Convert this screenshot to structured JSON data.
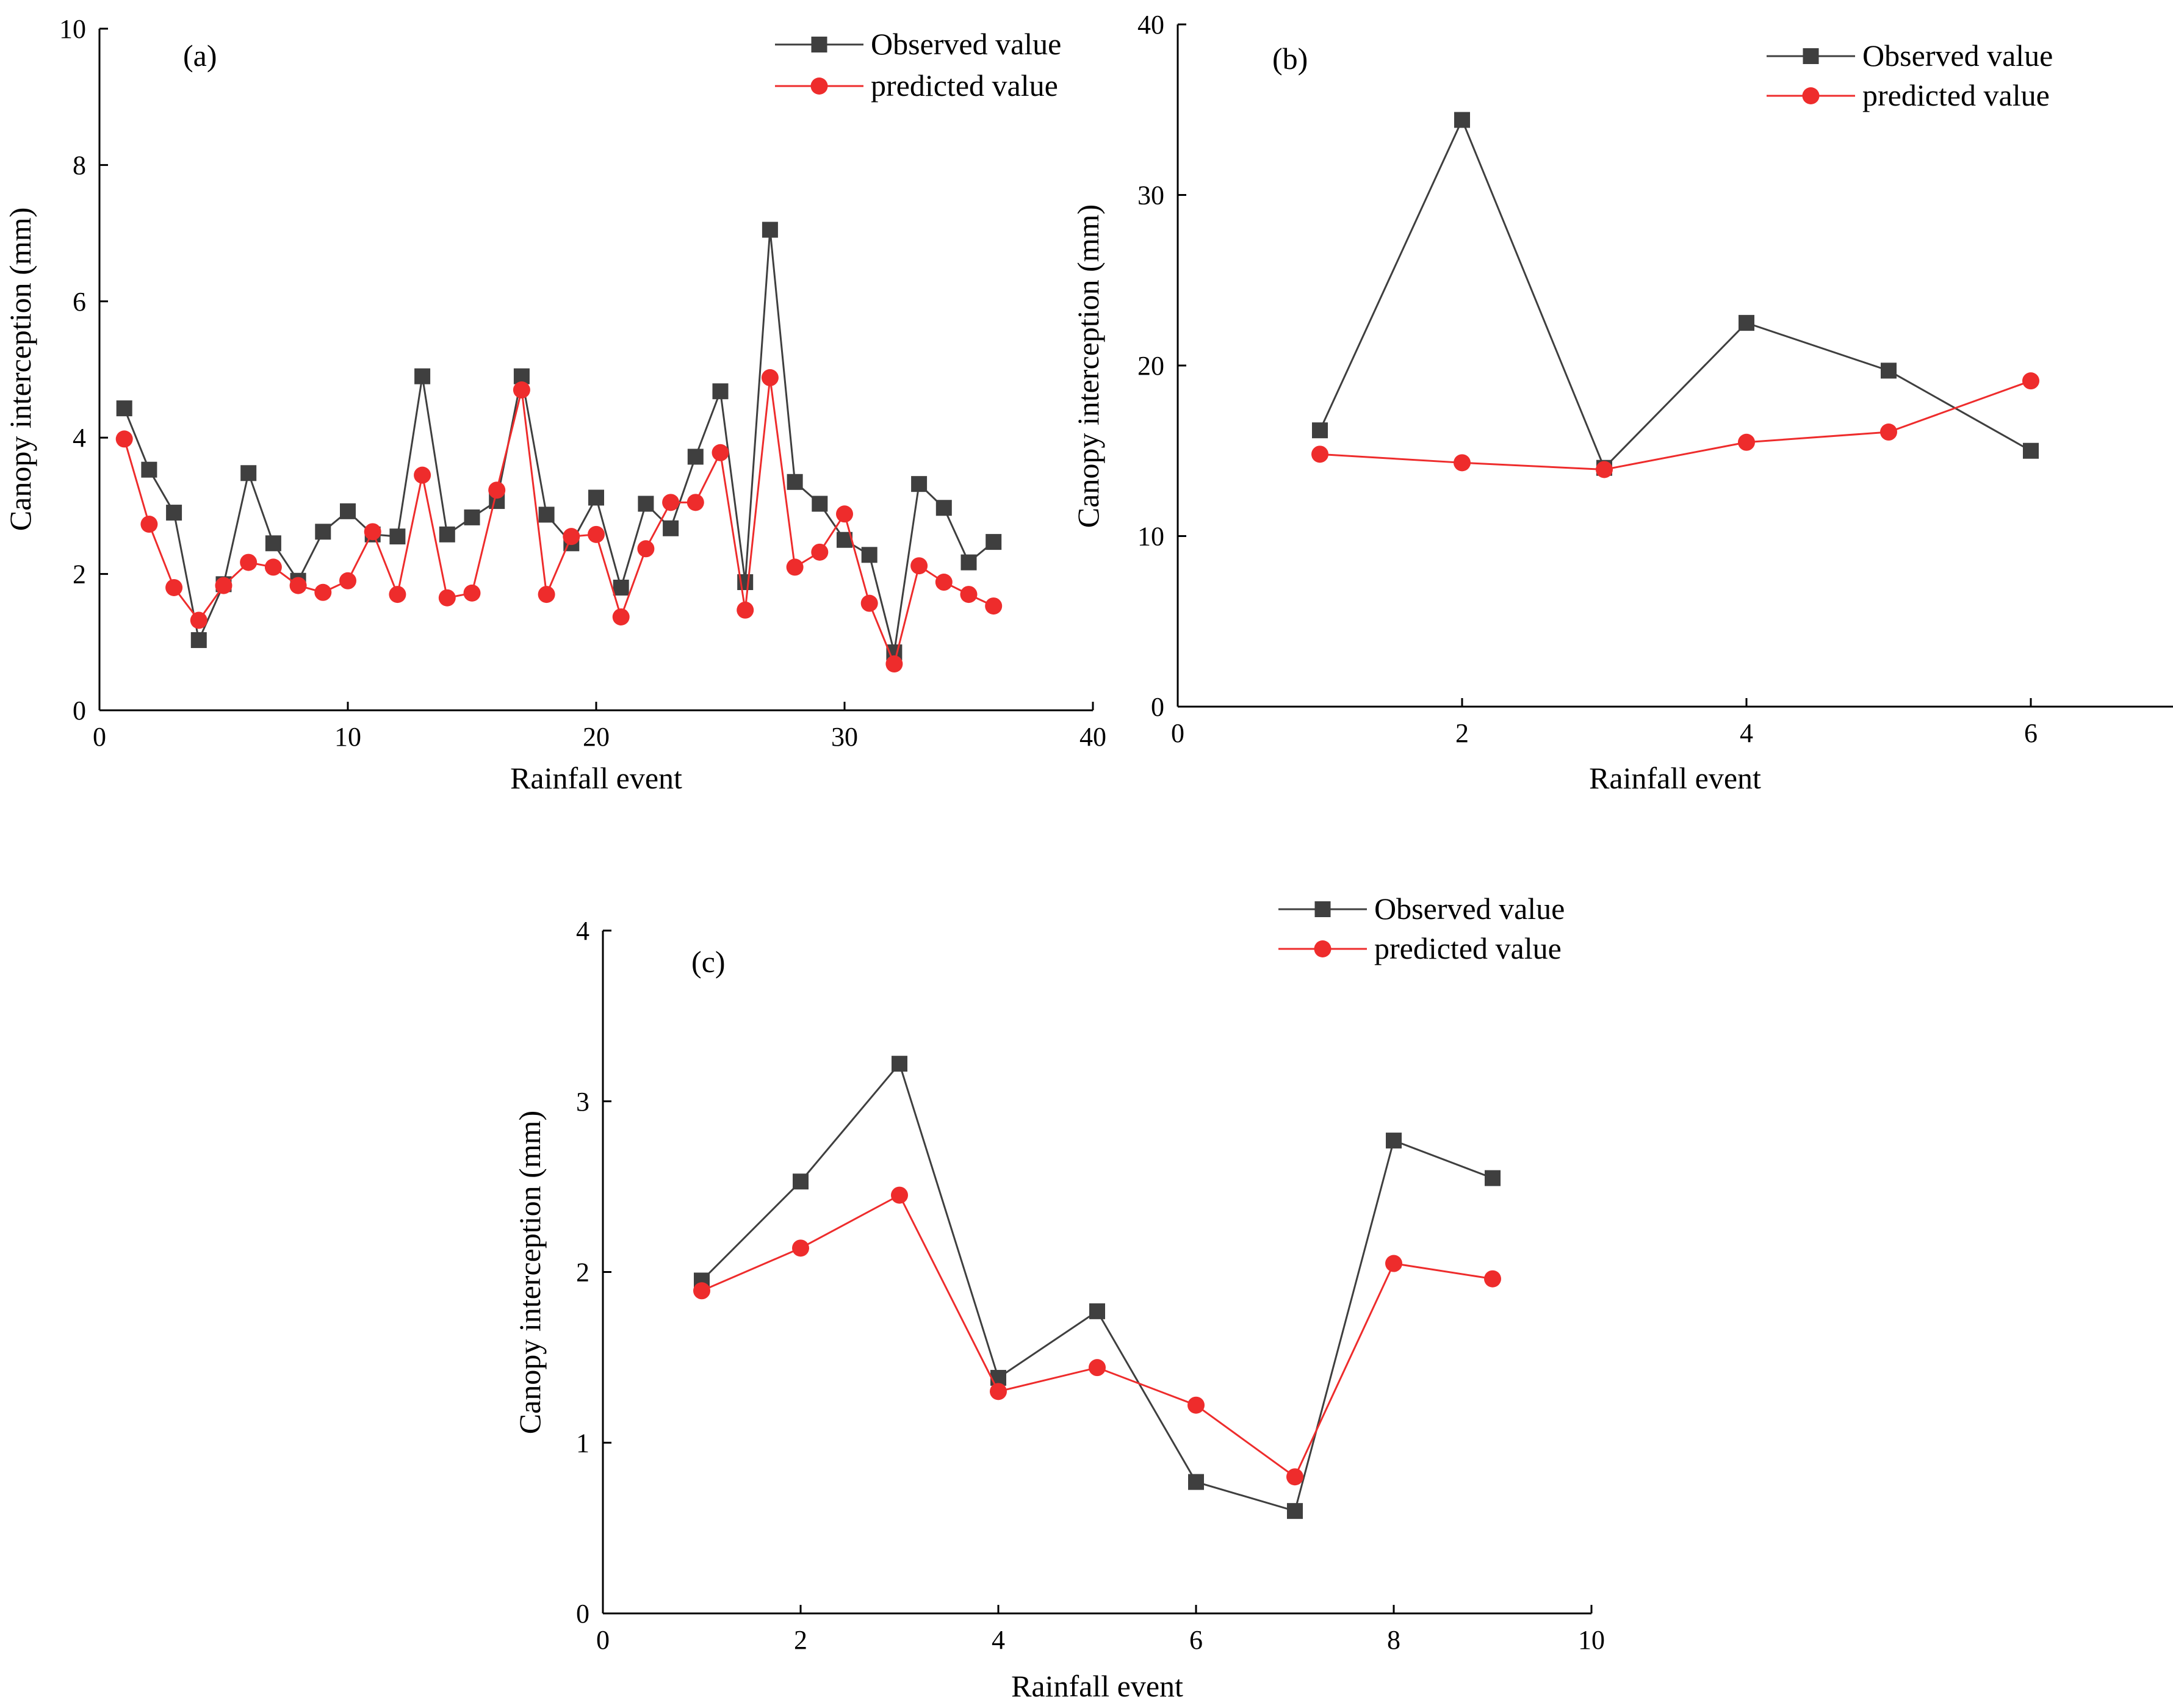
{
  "figure": {
    "background": "#ffffff"
  },
  "styles": {
    "observed_color": "#3f3f3f",
    "predicted_color": "#ee2c2c",
    "axis_color": "#000000"
  },
  "chart_data": [
    {
      "type": "line",
      "panel_label": "(a)",
      "title": "",
      "xlabel": "Rainfall event",
      "ylabel": "Canopy interception (mm)",
      "xlim": [
        0,
        40
      ],
      "ylim": [
        0,
        10
      ],
      "xticks": [
        0,
        10,
        20,
        30,
        40
      ],
      "yticks": [
        0,
        2,
        4,
        6,
        8,
        10
      ],
      "tick_labels_x": [
        "0",
        "10",
        "20",
        "30",
        "40"
      ],
      "tick_labels_y": [
        "0",
        "2",
        "4",
        "6",
        "8",
        "10"
      ],
      "grid": false,
      "legend_position": "top-right",
      "x": [
        1,
        2,
        3,
        4,
        5,
        6,
        7,
        8,
        9,
        10,
        11,
        12,
        13,
        14,
        15,
        16,
        17,
        18,
        19,
        20,
        21,
        22,
        23,
        24,
        25,
        26,
        27,
        28,
        29,
        30,
        31,
        32,
        33,
        34,
        35,
        36
      ],
      "series": [
        {
          "name": "Observed value",
          "marker": "square",
          "color": "#3f3f3f",
          "values": [
            4.43,
            3.53,
            2.9,
            1.03,
            1.85,
            3.48,
            2.45,
            1.9,
            2.62,
            2.92,
            2.58,
            2.55,
            4.9,
            2.58,
            2.83,
            3.07,
            4.9,
            2.87,
            2.45,
            3.12,
            1.8,
            3.03,
            2.67,
            3.72,
            4.68,
            1.88,
            7.05,
            3.35,
            3.03,
            2.5,
            2.28,
            0.85,
            3.32,
            2.97,
            2.17,
            2.47
          ]
        },
        {
          "name": "predicted value",
          "marker": "circle",
          "color": "#ee2c2c",
          "values": [
            3.98,
            2.73,
            1.8,
            1.32,
            1.83,
            2.17,
            2.1,
            1.83,
            1.73,
            1.9,
            2.62,
            1.7,
            3.45,
            1.65,
            1.72,
            3.23,
            4.7,
            1.7,
            2.55,
            2.58,
            1.37,
            2.37,
            3.05,
            3.05,
            3.78,
            1.47,
            4.88,
            2.1,
            2.32,
            2.88,
            1.57,
            0.68,
            2.12,
            1.88,
            1.7,
            1.53
          ]
        }
      ]
    },
    {
      "type": "line",
      "panel_label": "(b)",
      "title": "",
      "xlabel": "Rainfall event",
      "ylabel": "Canopy interception (mm)",
      "xlim": [
        0,
        7
      ],
      "ylim": [
        0,
        40
      ],
      "xticks": [
        0,
        2,
        4,
        6
      ],
      "yticks": [
        0,
        10,
        20,
        30,
        40
      ],
      "tick_labels_x": [
        "0",
        "2",
        "4",
        "6"
      ],
      "tick_labels_y": [
        "0",
        "10",
        "20",
        "30",
        "40"
      ],
      "grid": false,
      "legend_position": "top-right",
      "x": [
        1,
        2,
        3,
        4,
        5,
        6
      ],
      "series": [
        {
          "name": "Observed value",
          "marker": "square",
          "color": "#3f3f3f",
          "values": [
            16.2,
            34.4,
            14.0,
            22.5,
            19.7,
            15.0
          ]
        },
        {
          "name": "predicted value",
          "marker": "circle",
          "color": "#ee2c2c",
          "values": [
            14.8,
            14.3,
            13.9,
            15.5,
            16.1,
            19.1
          ]
        }
      ]
    },
    {
      "type": "line",
      "panel_label": "(c)",
      "title": "",
      "xlabel": "Rainfall event",
      "ylabel": "Canopy interception (mm)",
      "xlim": [
        0,
        10
      ],
      "ylim": [
        0,
        4
      ],
      "xticks": [
        0,
        2,
        4,
        6,
        8,
        10
      ],
      "yticks": [
        0,
        1,
        2,
        3,
        4
      ],
      "tick_labels_x": [
        "0",
        "2",
        "4",
        "6",
        "8",
        "10"
      ],
      "tick_labels_y": [
        "0",
        "1",
        "2",
        "3",
        "4"
      ],
      "grid": false,
      "legend_position": "top-right",
      "x": [
        1,
        2,
        3,
        4,
        5,
        6,
        7,
        8,
        9
      ],
      "series": [
        {
          "name": "Observed value",
          "marker": "square",
          "color": "#3f3f3f",
          "values": [
            1.95,
            2.53,
            3.22,
            1.38,
            1.77,
            0.77,
            0.6,
            2.77,
            2.55
          ]
        },
        {
          "name": "predicted value",
          "marker": "circle",
          "color": "#ee2c2c",
          "values": [
            1.89,
            2.14,
            2.45,
            1.3,
            1.44,
            1.22,
            0.8,
            2.05,
            1.96
          ]
        }
      ]
    }
  ]
}
